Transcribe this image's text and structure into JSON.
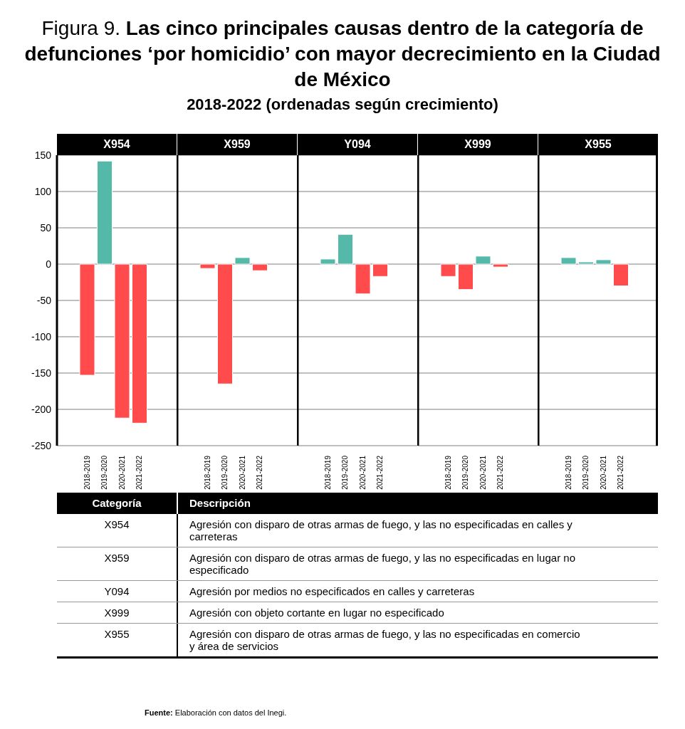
{
  "chart_data": [
    {
      "type": "other",
      "title": "Figura 9. Las cinco principales causas dentro de la categoría de defunciones ‘por homicidio’ con mayor decrecimiento en la Ciudad de México",
      "subtitle": "2018-2022 (ordenadas según crecimiento)"
    },
    {
      "type": "bar",
      "title": "X954",
      "categories": [
        "2018-2019",
        "2019-2020",
        "2020-2021",
        "2021-2022"
      ],
      "values": [
        -153,
        142,
        -212,
        -219
      ],
      "colors": [
        "#ff4b4b",
        "#55b9aa",
        "#ff4b4b",
        "#ff4b4b"
      ],
      "ylim": [
        -250,
        150
      ],
      "yticks": [
        -250,
        -200,
        -150,
        -100,
        -50,
        0,
        50,
        100,
        150
      ],
      "grid": "y"
    },
    {
      "type": "bar",
      "title": "X959",
      "categories": [
        "2018-2019",
        "2019-2020",
        "2020-2021",
        "2021-2022"
      ],
      "values": [
        -6,
        -165,
        9,
        -9
      ],
      "colors": [
        "#ff4b4b",
        "#ff4b4b",
        "#55b9aa",
        "#ff4b4b"
      ],
      "ylim": [
        -250,
        150
      ],
      "yticks": [
        -250,
        -200,
        -150,
        -100,
        -50,
        0,
        50,
        100,
        150
      ],
      "grid": "y",
      "tick_labels": "x"
    },
    {
      "type": "bar",
      "title": "Y094",
      "categories": [
        "2018-2019",
        "2019-2020",
        "2020-2021",
        "2021-2022"
      ],
      "values": [
        7,
        41,
        -41,
        -17
      ],
      "colors": [
        "#55b9aa",
        "#55b9aa",
        "#ff4b4b",
        "#ff4b4b"
      ],
      "ylim": [
        -250,
        150
      ],
      "yticks": [
        -250,
        -200,
        -150,
        -100,
        -50,
        0,
        50,
        100,
        150
      ],
      "grid": "y",
      "tick_labels": "x"
    },
    {
      "type": "bar",
      "title": "X999",
      "categories": [
        "2018-2019",
        "2019-2020",
        "2020-2021",
        "2021-2022"
      ],
      "values": [
        -17,
        -35,
        11,
        -4
      ],
      "colors": [
        "#ff4b4b",
        "#ff4b4b",
        "#55b9aa",
        "#ff4b4b"
      ],
      "ylim": [
        -250,
        150
      ],
      "yticks": [
        -250,
        -200,
        -150,
        -100,
        -50,
        0,
        50,
        100,
        150
      ],
      "grid": "y",
      "tick_labels": "x"
    },
    {
      "type": "bar",
      "title": "X955",
      "categories": [
        "2018-2019",
        "2019-2020",
        "2020-2021",
        "2021-2022"
      ],
      "values": [
        9,
        3,
        6,
        -30
      ],
      "colors": [
        "#55b9aa",
        "#55b9aa",
        "#55b9aa",
        "#ff4b4b"
      ],
      "ylim": [
        -250,
        150
      ],
      "yticks": [
        -250,
        -200,
        -150,
        -100,
        -50,
        0,
        50,
        100,
        150
      ],
      "grid": "y",
      "tick_labels": "x"
    },
    {
      "type": "other",
      "title": "Categoría",
      "subtitle": "Descripción",
      "categories": [
        "X954",
        "X959",
        "Y094",
        "X999",
        "X955"
      ],
      "annotations": [
        "Agresión con disparo de otras armas de fuego, y las no especificadas en calles y carreteras",
        "Agresión con disparo de otras armas de fuego, y las no especificadas en lugar no especificado",
        "Agresión por medios no especificados en calles y carreteras",
        "Agresión con objeto cortante en lugar no especificado",
        "Agresión con disparo de otras armas de fuego, y las no especificadas en comercio y área de servicios"
      ]
    },
    {
      "type": "other",
      "annotations": [
        "Fuente: Elaboración con datos del Inegi."
      ]
    }
  ]
}
